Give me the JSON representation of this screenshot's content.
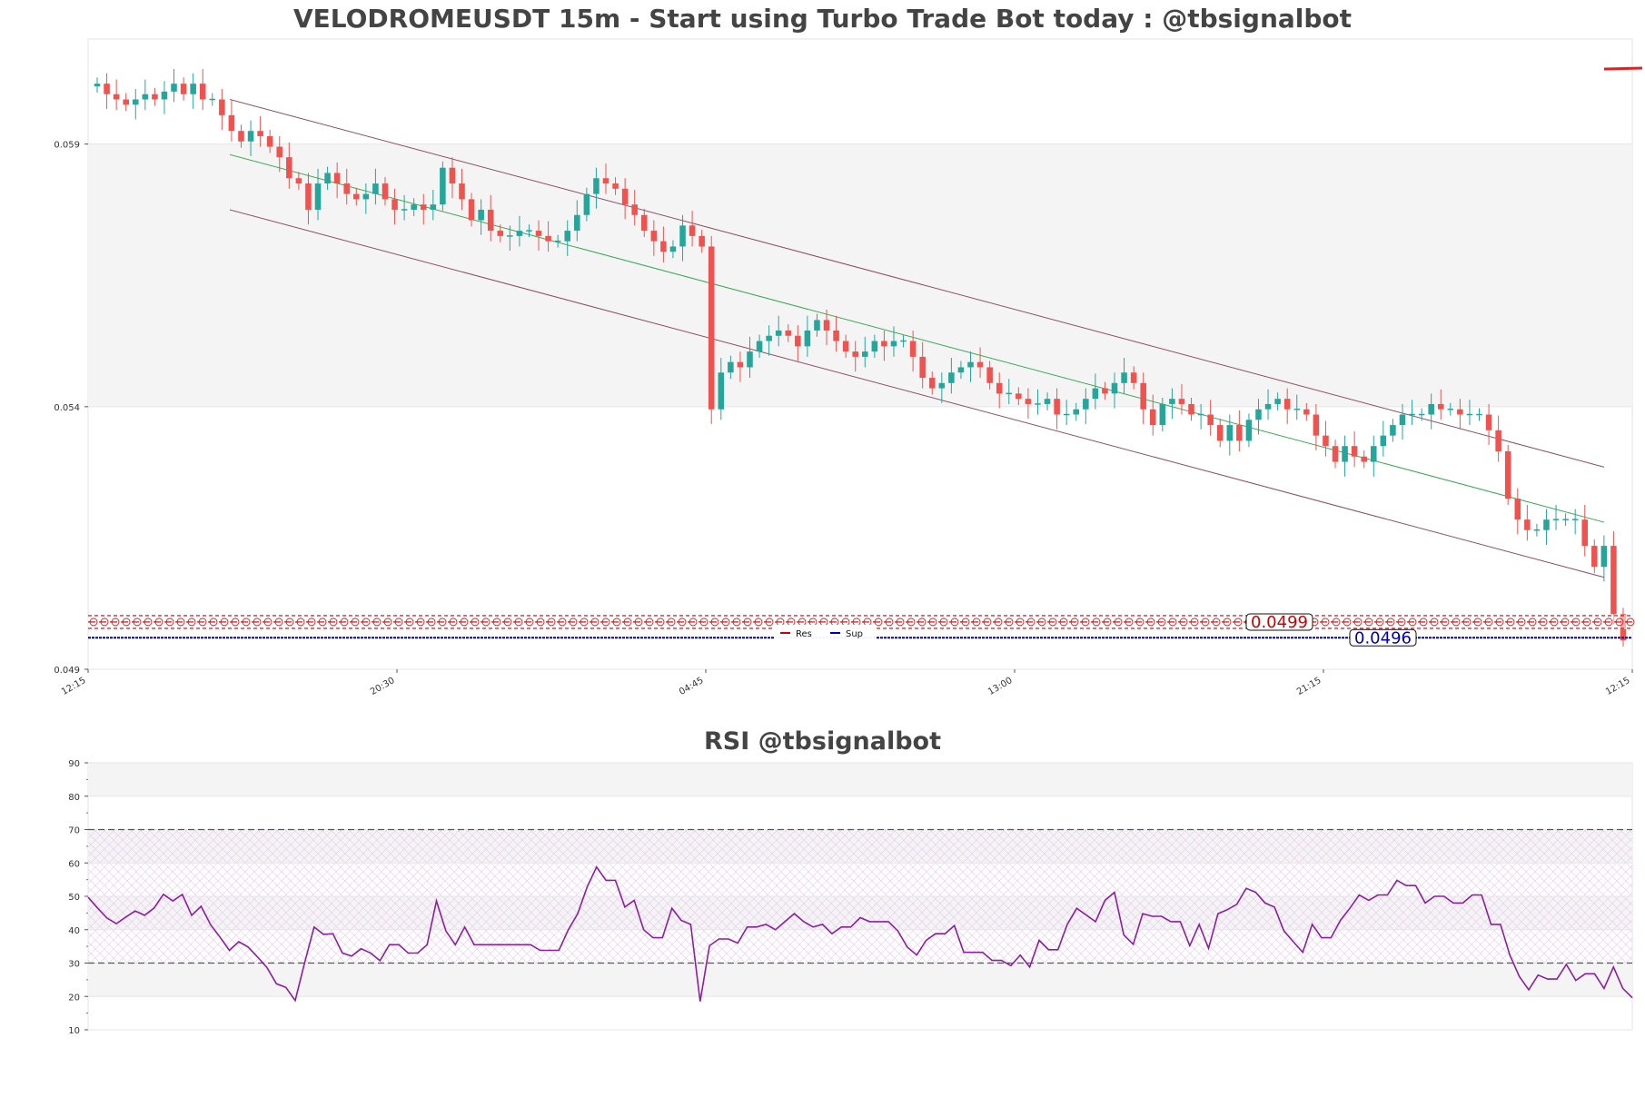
{
  "main_title": "VELODROMEUSDT 15m - Start using Turbo Trade Bot today : @tbsignalbot",
  "rsi_title": "RSI @tbsignalbot",
  "colors": {
    "up": "#26a69a",
    "down": "#ef5350",
    "resistance": "#cc0000",
    "support": "#0000aa",
    "rsi": "#8b1fa0",
    "channel": "#8c4f62",
    "midline": "#3aaa55"
  },
  "chart_data": [
    {
      "type": "candlestick",
      "title": "VELODROMEUSDT 15m - Start using Turbo Trade Bot today : @tbsignalbot",
      "y_ticks": [
        "0.049",
        "0.054",
        "0.059"
      ],
      "x_ticks": [
        "12:15",
        "20:30",
        "04:45",
        "13:00",
        "21:15",
        "12:15"
      ],
      "ylim": [
        0.049,
        0.061
      ],
      "legend": [
        {
          "label": "Res",
          "color": "#cc0000"
        },
        {
          "label": "Sup",
          "color": "#0000aa"
        }
      ],
      "legend_position": "bottom-center",
      "resistance": {
        "value": 0.0499,
        "label": "0.0499"
      },
      "support": {
        "value": 0.0496,
        "label": "0.0496"
      },
      "grid": true,
      "close": [
        0.06015,
        0.05995,
        0.05985,
        0.05975,
        0.05985,
        0.05995,
        0.05985,
        0.06,
        0.06015,
        0.05995,
        0.06015,
        0.05985,
        0.05985,
        0.05955,
        0.05925,
        0.05905,
        0.05925,
        0.05915,
        0.05895,
        0.05875,
        0.05835,
        0.05825,
        0.05775,
        0.05825,
        0.05845,
        0.05825,
        0.05805,
        0.05795,
        0.05805,
        0.05825,
        0.05795,
        0.05775,
        0.05775,
        0.05785,
        0.05775,
        0.05785,
        0.05855,
        0.05825,
        0.05795,
        0.05755,
        0.05775,
        0.05735,
        0.05725,
        0.05725,
        0.05735,
        0.05735,
        0.05725,
        0.05715,
        0.05715,
        0.05735,
        0.05765,
        0.05805,
        0.05835,
        0.05825,
        0.05815,
        0.05785,
        0.05765,
        0.05735,
        0.05715,
        0.05695,
        0.05705,
        0.05745,
        0.05725,
        0.05705,
        0.05395,
        0.05465,
        0.05485,
        0.05475,
        0.05505,
        0.05525,
        0.05535,
        0.05545,
        0.05535,
        0.05515,
        0.05545,
        0.05565,
        0.05545,
        0.05525,
        0.05505,
        0.05495,
        0.05505,
        0.05525,
        0.05515,
        0.05525,
        0.05525,
        0.05495,
        0.05455,
        0.05435,
        0.05445,
        0.05465,
        0.05475,
        0.05485,
        0.05475,
        0.05445,
        0.05425,
        0.05425,
        0.05415,
        0.05405,
        0.05405,
        0.05415,
        0.05385,
        0.05385,
        0.05395,
        0.05415,
        0.05435,
        0.05425,
        0.05445,
        0.05465,
        0.05445,
        0.05395,
        0.05365,
        0.05405,
        0.05415,
        0.05405,
        0.05385,
        0.05385,
        0.05365,
        0.05335,
        0.05365,
        0.05335,
        0.05375,
        0.05395,
        0.05405,
        0.05415,
        0.05395,
        0.05395,
        0.05385,
        0.05345,
        0.05325,
        0.05295,
        0.05325,
        0.05305,
        0.05295,
        0.05325,
        0.05345,
        0.05365,
        0.05385,
        0.05385,
        0.05385,
        0.05405,
        0.05395,
        0.05395,
        0.05385,
        0.05385,
        0.05385,
        0.05355,
        0.05315,
        0.05225,
        0.05185,
        0.05165,
        0.05165,
        0.05185,
        0.05185,
        0.05185,
        0.05185,
        0.05135,
        0.05095,
        0.05135,
        0.05005,
        0.04955
      ]
    },
    {
      "type": "line",
      "title": "RSI @tbsignalbot",
      "y_ticks": [
        "10",
        "20",
        "30",
        "40",
        "50",
        "60",
        "70",
        "80",
        "90"
      ],
      "ylim": [
        10,
        90
      ],
      "reference_lines": [
        30,
        70
      ],
      "grid": true,
      "series": [
        {
          "values": [
            49.7,
            46.5,
            43.5,
            41.8,
            43.8,
            45.6,
            44.3,
            46.5,
            50.6,
            48.6,
            50.6,
            44.3,
            47.0,
            41.5,
            37.8,
            33.8,
            36.4,
            34.8,
            31.8,
            28.6,
            23.8,
            22.7,
            18.8,
            30.1,
            40.8,
            38.6,
            38.8,
            33.0,
            32.1,
            34.3,
            33.0,
            30.7,
            35.5,
            35.5,
            33.0,
            33.0,
            35.5,
            48.6,
            39.6,
            35.5,
            40.8,
            35.5,
            35.5,
            35.5,
            35.5,
            35.5,
            35.5,
            35.5,
            33.8,
            33.8,
            33.8,
            40.0,
            44.8,
            52.8,
            58.8,
            54.8,
            54.8,
            46.8,
            48.8,
            40.0,
            37.6,
            37.6,
            46.4,
            42.8,
            41.6,
            18.5,
            35.2,
            37.2,
            37.2,
            36.0,
            40.8,
            40.8,
            41.6,
            40.0,
            42.4,
            44.8,
            42.4,
            40.8,
            41.6,
            38.8,
            40.8,
            40.8,
            43.6,
            42.4,
            42.4,
            42.4,
            39.6,
            34.8,
            32.4,
            36.8,
            38.8,
            38.8,
            41.2,
            33.2,
            33.2,
            33.2,
            30.8,
            30.8,
            29.2,
            32.4,
            28.8,
            36.8,
            34.0,
            34.0,
            41.6,
            46.4,
            44.4,
            42.4,
            48.8,
            51.2,
            38.4,
            35.6,
            44.8,
            44.0,
            44.0,
            42.4,
            42.4,
            35.2,
            41.6,
            34.4,
            44.8,
            46.0,
            47.6,
            52.4,
            51.2,
            48.0,
            46.8,
            39.6,
            36.4,
            33.2,
            41.6,
            37.6,
            37.6,
            42.8,
            46.4,
            50.4,
            48.8,
            50.4,
            50.4,
            54.8,
            53.2,
            53.2,
            48.0,
            50.0,
            50.0,
            48.0,
            48.0,
            50.4,
            50.4,
            41.6,
            41.6,
            32.4,
            26.0,
            22.0,
            26.4,
            25.2,
            25.2,
            29.6,
            24.8,
            26.8,
            26.8,
            22.4,
            28.8,
            22.4,
            19.6
          ]
        }
      ]
    }
  ]
}
